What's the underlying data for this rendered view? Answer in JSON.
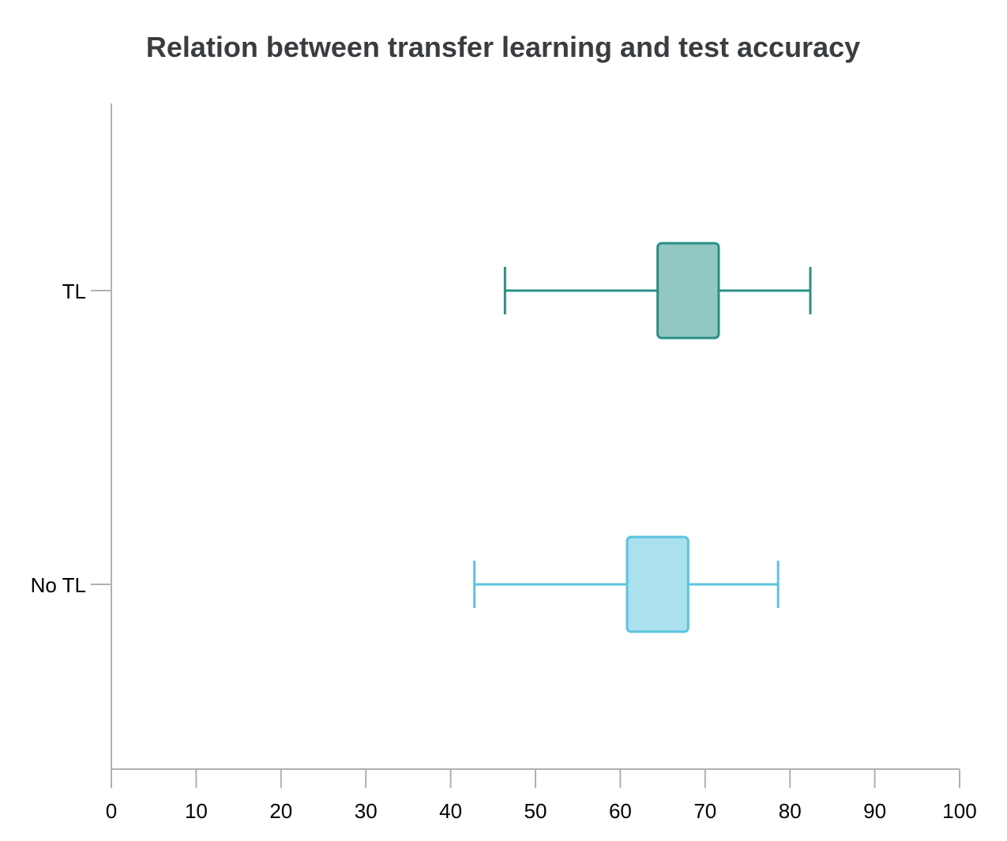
{
  "chart_data": {
    "type": "boxplot",
    "orientation": "horizontal",
    "title": "Relation between transfer learning and test accuracy",
    "xlabel": "",
    "ylabel": "",
    "xlim": [
      0,
      100
    ],
    "x_ticks": [
      0,
      10,
      20,
      30,
      40,
      50,
      60,
      70,
      80,
      90,
      100
    ],
    "x_tick_labels": [
      "0",
      "10",
      "20",
      "30",
      "40",
      "50",
      "60",
      "70",
      "80",
      "90",
      "100"
    ],
    "categories": [
      "TL",
      "No TL"
    ],
    "grid": false,
    "legend": "none",
    "series": [
      {
        "category": "TL",
        "min": 46.4,
        "q1": 64.4,
        "q3": 71.6,
        "max": 82.4,
        "stroke": "#2a8f85",
        "fill": "#93c8c2"
      },
      {
        "category": "No TL",
        "min": 42.8,
        "q1": 60.8,
        "q3": 68.0,
        "max": 78.6,
        "stroke": "#5cc3dd",
        "fill": "#abe1ee"
      }
    ]
  }
}
